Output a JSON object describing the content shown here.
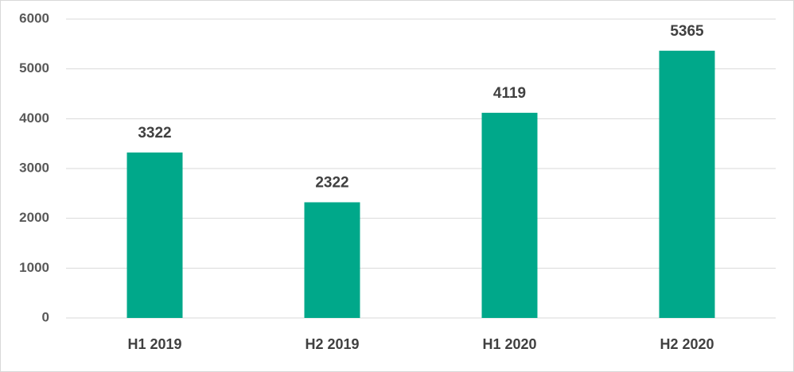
{
  "chart_data": {
    "type": "bar",
    "categories": [
      "H1 2019",
      "H2 2019",
      "H1 2020",
      "H2 2020"
    ],
    "values": [
      3322,
      2322,
      4119,
      5365
    ],
    "color": "#00a88a",
    "ylim": [
      0,
      6000
    ],
    "yticks": [
      0,
      1000,
      2000,
      3000,
      4000,
      5000,
      6000
    ],
    "grid": true
  }
}
